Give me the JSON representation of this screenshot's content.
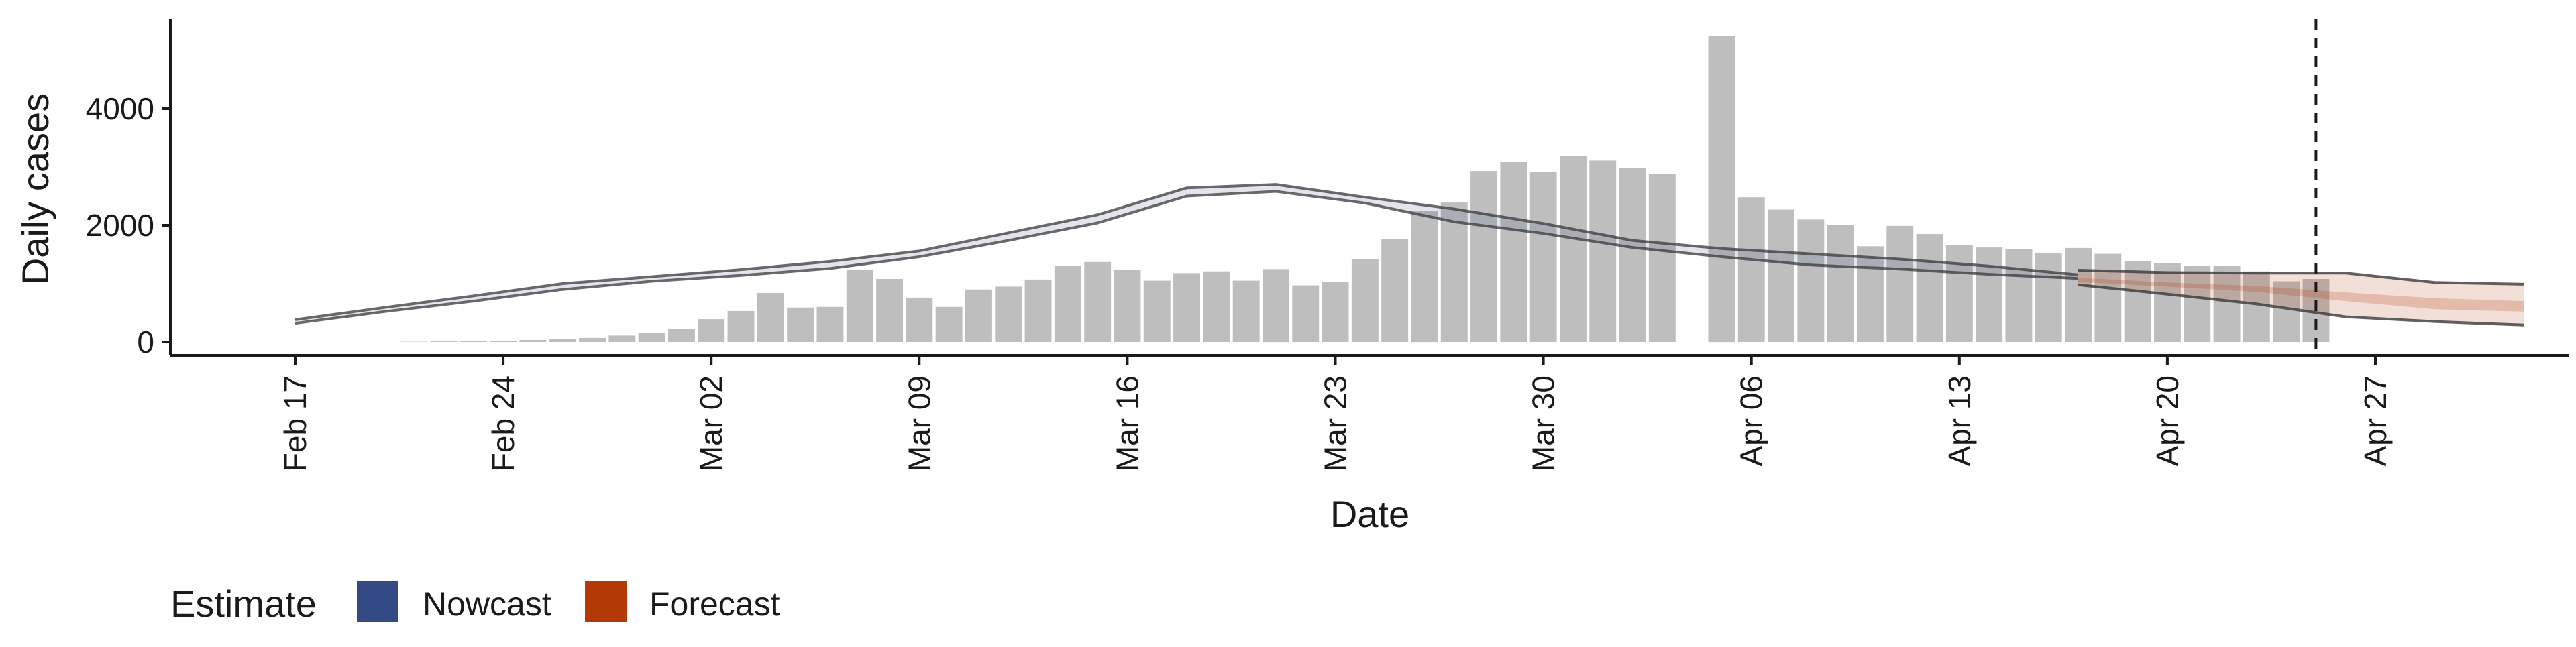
{
  "chart_data": {
    "type": "bar",
    "xlabel": "Date",
    "ylabel": "Daily cases",
    "ylim": [
      0,
      5500
    ],
    "y_ticks": [
      0,
      2000,
      4000
    ],
    "x_ticks": [
      "Feb 17",
      "Feb 24",
      "Mar 02",
      "Mar 09",
      "Mar 16",
      "Mar 23",
      "Mar 30",
      "Apr 06",
      "Apr 13",
      "Apr 20",
      "Apr 27"
    ],
    "x_range": [
      "2020-02-14",
      "2020-05-03"
    ],
    "forecast_date": "2020-04-25",
    "grid": false,
    "bar_color": "#bebebe",
    "bars": {
      "dates": [
        "2020-02-21",
        "2020-02-22",
        "2020-02-23",
        "2020-02-24",
        "2020-02-25",
        "2020-02-26",
        "2020-02-27",
        "2020-02-28",
        "2020-02-29",
        "2020-03-01",
        "2020-03-02",
        "2020-03-03",
        "2020-03-04",
        "2020-03-05",
        "2020-03-06",
        "2020-03-07",
        "2020-03-08",
        "2020-03-09",
        "2020-03-10",
        "2020-03-11",
        "2020-03-12",
        "2020-03-13",
        "2020-03-14",
        "2020-03-15",
        "2020-03-16",
        "2020-03-17",
        "2020-03-18",
        "2020-03-19",
        "2020-03-20",
        "2020-03-21",
        "2020-03-22",
        "2020-03-23",
        "2020-03-24",
        "2020-03-25",
        "2020-03-26",
        "2020-03-27",
        "2020-03-28",
        "2020-03-29",
        "2020-03-30",
        "2020-03-31",
        "2020-04-01",
        "2020-04-02",
        "2020-04-03",
        "2020-04-04",
        "2020-04-05",
        "2020-04-06",
        "2020-04-07",
        "2020-04-08",
        "2020-04-09",
        "2020-04-10",
        "2020-04-11",
        "2020-04-12",
        "2020-04-13",
        "2020-04-14",
        "2020-04-15",
        "2020-04-16",
        "2020-04-17",
        "2020-04-18",
        "2020-04-19",
        "2020-04-20",
        "2020-04-21",
        "2020-04-22",
        "2020-04-23",
        "2020-04-24",
        "2020-04-25"
      ],
      "values": [
        5,
        10,
        15,
        20,
        35,
        50,
        70,
        110,
        150,
        220,
        390,
        530,
        840,
        590,
        600,
        1240,
        1080,
        760,
        600,
        900,
        950,
        1070,
        1300,
        1370,
        1230,
        1050,
        1180,
        1210,
        1050,
        1250,
        970,
        1030,
        1420,
        1770,
        2250,
        2390,
        2930,
        3090,
        2910,
        3190,
        3110,
        2980,
        2880,
        null,
        5250,
        2480,
        2270,
        2100,
        2010,
        1640,
        1990,
        1850,
        1660,
        1620,
        1590,
        1530,
        1610,
        1510,
        1390,
        1350,
        1310,
        1300,
        1210,
        1040,
        1080
      ]
    },
    "series": [
      {
        "name": "Nowcast",
        "color": "#3a4e8c",
        "dates": [
          "2020-02-17",
          "2020-02-20",
          "2020-02-23",
          "2020-02-26",
          "2020-02-29",
          "2020-03-03",
          "2020-03-06",
          "2020-03-09",
          "2020-03-12",
          "2020-03-15",
          "2020-03-18",
          "2020-03-21",
          "2020-03-24",
          "2020-03-27",
          "2020-03-30",
          "2020-04-02",
          "2020-04-05",
          "2020-04-08",
          "2020-04-11",
          "2020-04-14",
          "2020-04-17"
        ],
        "upper": [
          380,
          590,
          790,
          1000,
          1120,
          1240,
          1380,
          1560,
          1870,
          2180,
          2640,
          2700,
          2480,
          2280,
          2030,
          1740,
          1600,
          1510,
          1420,
          1300,
          1150
        ],
        "lower": [
          320,
          520,
          700,
          900,
          1040,
          1140,
          1260,
          1460,
          1740,
          2040,
          2500,
          2580,
          2380,
          2060,
          1860,
          1620,
          1460,
          1320,
          1250,
          1160,
          1090
        ]
      },
      {
        "name": "Forecast",
        "color": "#b03a0e",
        "dates": [
          "2020-04-17",
          "2020-04-20",
          "2020-04-23",
          "2020-04-26",
          "2020-04-29",
          "2020-05-02"
        ],
        "upper": [
          1230,
          1190,
          1180,
          1180,
          1020,
          990
        ],
        "lower": [
          980,
          820,
          650,
          430,
          350,
          290
        ],
        "inner_upper": [
          1100,
          1020,
          960,
          850,
          750,
          700
        ],
        "inner_lower": [
          1030,
          950,
          860,
          700,
          560,
          520
        ]
      }
    ],
    "legend": {
      "title": "Estimate",
      "entries": [
        {
          "label": "Nowcast",
          "color": "#344a86"
        },
        {
          "label": "Forecast",
          "color": "#b33a05"
        }
      ],
      "placement": "bottom-left"
    }
  }
}
